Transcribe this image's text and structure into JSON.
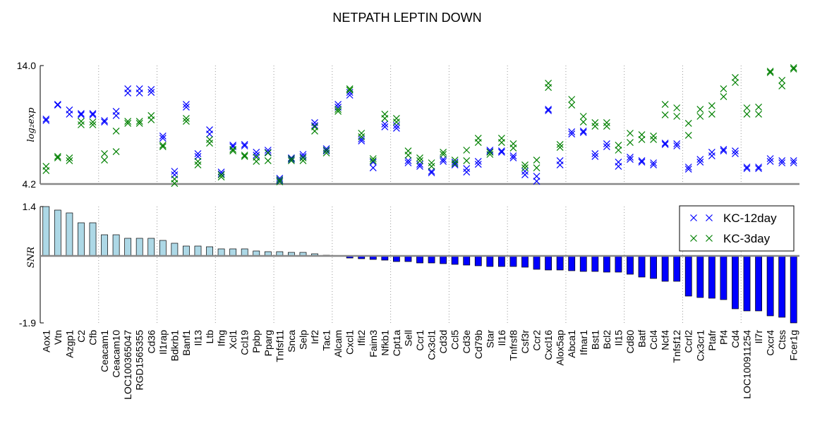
{
  "chart_data": [
    {
      "type": "scatter",
      "title": "NETPATH LEPTIN DOWN",
      "ylabel": "log₂exp",
      "ylim": [
        4.2,
        14.0
      ],
      "yticks": [
        4.2,
        {
          "value": 14.0,
          "label": "14.0"
        }
      ],
      "legend": "upper right",
      "series": [
        {
          "name": "KC-12day",
          "color": "#0000ff",
          "values": [
            [
              9.57,
              9.45
            ],
            [
              10.79,
              10.73
            ],
            [
              10.33,
              9.98
            ],
            [
              10.03,
              9.92
            ],
            [
              10.03,
              9.92
            ],
            [
              9.45,
              9.33
            ],
            [
              10.21,
              9.86
            ],
            [
              12.08,
              11.73
            ],
            [
              12.08,
              11.73
            ],
            [
              12.02,
              11.78
            ],
            [
              8.17,
              7.99
            ],
            [
              5.25,
              4.96
            ],
            [
              10.79,
              10.56
            ],
            [
              6.71,
              6.48
            ],
            [
              8.69,
              8.34
            ],
            [
              5.19,
              5.02
            ],
            [
              7.41,
              7.29
            ],
            [
              7.47,
              7.35
            ],
            [
              6.83,
              6.59
            ],
            [
              7.0,
              6.83
            ],
            [
              4.67,
              4.49
            ],
            [
              6.36,
              6.24
            ],
            [
              6.65,
              6.48
            ],
            [
              9.28,
              9.04
            ],
            [
              7.12,
              6.94
            ],
            [
              10.79,
              10.56
            ],
            [
              11.78,
              11.55
            ],
            [
              7.93,
              7.76
            ],
            [
              6.01,
              5.54
            ],
            [
              9.16,
              8.93
            ],
            [
              9.04,
              8.81
            ],
            [
              6.13,
              5.95
            ],
            [
              5.83,
              5.66
            ],
            [
              5.25,
              5.13
            ],
            [
              6.24,
              6.07
            ],
            [
              6.01,
              5.78
            ],
            [
              5.48,
              5.19
            ],
            [
              6.07,
              5.83
            ],
            [
              7.0,
              6.88
            ],
            [
              6.94,
              6.83
            ],
            [
              6.53,
              6.36
            ],
            [
              5.25,
              4.96
            ],
            [
              4.84,
              4.43
            ],
            [
              10.38,
              10.27
            ],
            [
              6.13,
              5.78
            ],
            [
              8.52,
              8.34
            ],
            [
              8.58,
              8.46
            ],
            [
              6.71,
              6.48
            ],
            [
              7.53,
              7.29
            ],
            [
              6.01,
              5.66
            ],
            [
              6.42,
              6.24
            ],
            [
              6.13,
              6.01
            ],
            [
              5.95,
              5.78
            ],
            [
              7.58,
              7.47
            ],
            [
              7.53,
              7.35
            ],
            [
              5.6,
              5.43
            ],
            [
              6.24,
              6.01
            ],
            [
              6.83,
              6.53
            ],
            [
              7.06,
              6.94
            ],
            [
              6.94,
              6.71
            ],
            [
              5.6,
              5.48
            ],
            [
              5.6,
              5.48
            ],
            [
              6.3,
              6.07
            ],
            [
              6.13,
              5.95
            ],
            [
              6.13,
              5.95
            ]
          ]
        },
        {
          "name": "KC-3day",
          "color": "#008000",
          "values": [
            [
              5.66,
              5.31
            ],
            [
              6.48,
              6.36
            ],
            [
              6.36,
              6.13
            ],
            [
              9.39,
              9.1
            ],
            [
              9.33,
              9.1
            ],
            [
              6.71,
              6.18
            ],
            [
              8.58,
              6.88
            ],
            [
              9.39,
              9.22
            ],
            [
              9.39,
              9.22
            ],
            [
              9.86,
              9.51
            ],
            [
              7.41,
              7.29
            ],
            [
              4.61,
              4.25
            ],
            [
              9.63,
              9.39
            ],
            [
              6.07,
              5.78
            ],
            [
              7.88,
              7.58
            ],
            [
              4.96,
              4.78
            ],
            [
              7.06,
              6.94
            ],
            [
              6.59,
              6.48
            ],
            [
              6.42,
              6.07
            ],
            [
              6.77,
              6.13
            ],
            [
              4.55,
              4.38
            ],
            [
              6.3,
              6.13
            ],
            [
              6.36,
              6.13
            ],
            [
              8.93,
              8.58
            ],
            [
              7.0,
              6.77
            ],
            [
              10.38,
              10.21
            ],
            [
              12.08,
              11.96
            ],
            [
              8.4,
              8.11
            ],
            [
              6.3,
              6.13
            ],
            [
              9.98,
              9.63
            ],
            [
              9.63,
              9.33
            ],
            [
              6.94,
              6.59
            ],
            [
              6.36,
              6.13
            ],
            [
              5.95,
              5.66
            ],
            [
              6.83,
              6.65
            ],
            [
              6.18,
              5.89
            ],
            [
              7.0,
              6.13
            ],
            [
              7.99,
              7.64
            ],
            [
              6.83,
              6.65
            ],
            [
              7.99,
              7.64
            ],
            [
              7.53,
              7.18
            ],
            [
              5.78,
              5.54
            ],
            [
              6.18,
              5.54
            ],
            [
              12.54,
              12.19
            ],
            [
              7.47,
              7.23
            ],
            [
              11.2,
              10.73
            ],
            [
              9.8,
              9.33
            ],
            [
              9.28,
              8.98
            ],
            [
              9.28,
              8.98
            ],
            [
              7.41,
              7.0
            ],
            [
              8.4,
              7.64
            ],
            [
              8.28,
              7.88
            ],
            [
              8.17,
              7.88
            ],
            [
              10.79,
              9.92
            ],
            [
              10.5,
              9.8
            ],
            [
              9.22,
              8.23
            ],
            [
              10.38,
              9.8
            ],
            [
              10.68,
              9.98
            ],
            [
              12.08,
              11.43
            ],
            [
              13.01,
              12.6
            ],
            [
              10.5,
              9.98
            ],
            [
              10.56,
              9.98
            ],
            [
              13.53,
              13.42
            ],
            [
              12.78,
              12.31
            ],
            [
              13.83,
              13.71
            ]
          ]
        }
      ]
    },
    {
      "type": "bar",
      "ylabel": "SNR",
      "ylim": [
        -1.9,
        1.4
      ],
      "yticks": [
        1.4,
        -1.9
      ],
      "pos_color": "#add8e6",
      "neg_color": "#0000ff",
      "categories": [
        "Aox1",
        "Vtn",
        "Azgp1",
        "C2",
        "Cfb",
        "Ceacam1",
        "Ceacam10",
        "LOC100365047",
        "RGD1565355",
        "Cd36",
        "Il1rap",
        "Bdkrb1",
        "Banf1",
        "Il13",
        "Ltb",
        "Ifng",
        "Xcl1",
        "Ccl19",
        "Ppbp",
        "Pparg",
        "Tnfsf11",
        "Snca",
        "Selp",
        "Irf2",
        "Tac1",
        "Alcam",
        "Cxcl1",
        "Ifit2",
        "Faim3",
        "Nfkb1",
        "Cpt1a",
        "Sell",
        "Ccr1",
        "Cx3cl1",
        "Cd3d",
        "Ccl5",
        "Cd3e",
        "Cd79b",
        "Star",
        "Il16",
        "Tnfrsf8",
        "Csf3r",
        "Ccr2",
        "Cxcl16",
        "Alox5ap",
        "Abca1",
        "Ifnar1",
        "Bst1",
        "Bcl2",
        "Il15",
        "Cd80",
        "Batf",
        "Ccl4",
        "Ncf4",
        "Tnfsf12",
        "Ccrl2",
        "Cx3cr1",
        "Ptafr",
        "Pf4",
        "Cd4",
        "LOC100911254",
        "Il7r",
        "Cxcr4",
        "Ctss",
        "Fcer1g"
      ],
      "values": [
        1.4,
        1.3,
        1.22,
        0.94,
        0.94,
        0.6,
        0.6,
        0.5,
        0.5,
        0.5,
        0.44,
        0.36,
        0.28,
        0.28,
        0.26,
        0.2,
        0.2,
        0.2,
        0.14,
        0.12,
        0.12,
        0.1,
        0.1,
        0.06,
        0.02,
        -0.01,
        -0.06,
        -0.08,
        -0.1,
        -0.12,
        -0.16,
        -0.16,
        -0.2,
        -0.2,
        -0.22,
        -0.24,
        -0.26,
        -0.28,
        -0.3,
        -0.3,
        -0.3,
        -0.32,
        -0.38,
        -0.4,
        -0.4,
        -0.42,
        -0.44,
        -0.44,
        -0.46,
        -0.46,
        -0.52,
        -0.6,
        -0.64,
        -0.72,
        -0.72,
        -1.14,
        -1.18,
        -1.2,
        -1.24,
        -1.5,
        -1.56,
        -1.56,
        -1.7,
        -1.74,
        -1.9
      ]
    }
  ]
}
